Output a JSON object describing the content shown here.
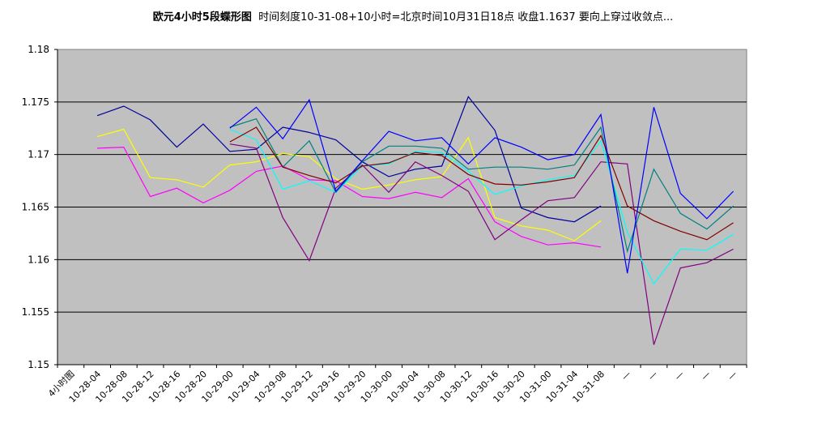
{
  "title_bold": "欧元4小时5段蝶形图",
  "title_rest": "时间刻度10-31-08+10小时=北京时间10月31日18点 收盘1.1637 要向上穿过收敛点...",
  "chart_data": {
    "type": "line",
    "categories": [
      "4小时图",
      "10-28-04",
      "10-28-08",
      "10-28-12",
      "10-28-16",
      "10-28-20",
      "10-29-00",
      "10-29-04",
      "10-29-08",
      "10-29-12",
      "10-29-16",
      "10-29-20",
      "10-30-00",
      "10-30-04",
      "10-30-08",
      "10-30-12",
      "10-30-16",
      "10-30-20",
      "10-31-00",
      "10-31-04",
      "10-31-08",
      "—",
      "—",
      "—",
      "—",
      "—"
    ],
    "ylim": [
      1.15,
      1.18
    ],
    "yticks": [
      "1.15",
      "1.155",
      "1.16",
      "1.165",
      "1.17",
      "1.175",
      "1.18"
    ],
    "plot_bg": "#c0c0c0",
    "grid": "horizontal",
    "series": [
      {
        "color": "#0000a0",
        "values": [
          null,
          1.1737,
          1.1746,
          1.1733,
          1.1707,
          1.1729,
          1.1703,
          1.1705,
          1.1726,
          1.1721,
          1.1714,
          1.1693,
          1.1679,
          1.1686,
          1.1689,
          1.1755,
          1.1723,
          1.1649,
          1.164,
          1.1636,
          1.1651,
          null,
          null,
          null,
          null,
          null
        ]
      },
      {
        "color": "#ffff00",
        "values": [
          null,
          1.1717,
          1.1724,
          1.1678,
          1.1676,
          1.1669,
          1.169,
          1.1693,
          1.1701,
          1.1698,
          1.1677,
          1.1667,
          1.1671,
          1.1676,
          1.1679,
          1.1716,
          1.164,
          1.1632,
          1.1628,
          1.1618,
          1.1637,
          null,
          null,
          null,
          null,
          null
        ]
      },
      {
        "color": "#ff00ff",
        "values": [
          null,
          1.1706,
          1.1707,
          1.166,
          1.1668,
          1.1654,
          1.1666,
          1.1684,
          1.1689,
          1.1676,
          1.1675,
          1.166,
          1.1658,
          1.1664,
          1.1659,
          1.1677,
          1.1636,
          1.1622,
          1.1614,
          1.1616,
          1.1612,
          null,
          null,
          null,
          null,
          null
        ]
      },
      {
        "color": "#800080",
        "values": [
          null,
          null,
          null,
          null,
          null,
          null,
          1.171,
          1.1706,
          1.164,
          1.1599,
          1.1668,
          1.169,
          1.1664,
          1.1693,
          1.168,
          1.1665,
          1.1619,
          1.1638,
          1.1656,
          1.1659,
          1.1693,
          1.1691,
          1.1519,
          1.1592,
          1.1597,
          1.161
        ]
      },
      {
        "color": "#00ffff",
        "values": [
          null,
          null,
          null,
          null,
          null,
          null,
          1.1724,
          1.1714,
          1.1667,
          1.1675,
          1.1664,
          1.1689,
          1.1691,
          1.1703,
          1.1702,
          1.1684,
          1.1662,
          1.167,
          1.1676,
          1.168,
          1.1713,
          1.1626,
          1.1577,
          1.161,
          1.1609,
          1.1624
        ]
      },
      {
        "color": "#008080",
        "values": [
          null,
          null,
          null,
          null,
          null,
          null,
          1.1726,
          1.1734,
          1.1688,
          1.1713,
          1.1664,
          1.1693,
          1.1708,
          1.1708,
          1.1706,
          1.1686,
          1.1688,
          1.1688,
          1.1686,
          1.169,
          1.1726,
          1.1608,
          1.1686,
          1.1644,
          1.1629,
          1.1651
        ]
      },
      {
        "color": "#800000",
        "values": [
          null,
          null,
          null,
          null,
          null,
          null,
          1.1712,
          1.1726,
          1.1688,
          1.168,
          1.1673,
          1.1689,
          1.1692,
          1.1702,
          1.1699,
          1.1681,
          1.1672,
          1.1671,
          1.1674,
          1.1678,
          1.1718,
          1.1651,
          1.1637,
          1.1627,
          1.1619,
          1.1635
        ]
      },
      {
        "color": "#0000ff",
        "values": [
          null,
          null,
          null,
          null,
          null,
          null,
          1.1725,
          1.1745,
          1.1715,
          1.1752,
          1.1665,
          1.1694,
          1.1722,
          1.1713,
          1.1716,
          1.1691,
          1.1716,
          1.1707,
          1.1695,
          1.17,
          1.1738,
          1.1587,
          1.1745,
          1.1663,
          1.1639,
          1.1665
        ]
      }
    ]
  }
}
